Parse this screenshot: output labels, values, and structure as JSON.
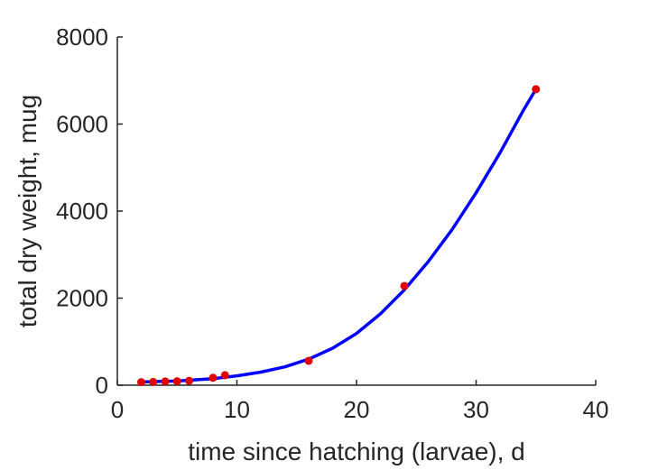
{
  "chart_data": {
    "type": "scatter",
    "title": "",
    "xlabel": "time since hatching (larvae), d",
    "ylabel": "total dry weight, mug",
    "xlim": [
      0,
      40
    ],
    "ylim": [
      0,
      8000
    ],
    "x_ticks": [
      0,
      10,
      20,
      30,
      40
    ],
    "y_ticks": [
      0,
      2000,
      4000,
      6000,
      8000
    ],
    "x_tick_labels": [
      "0",
      "10",
      "20",
      "30",
      "40"
    ],
    "y_tick_labels": [
      "0",
      "2000",
      "4000",
      "6000",
      "8000"
    ],
    "grid": false,
    "colors": {
      "points": "#e00000",
      "fit": "#0000ff",
      "axis": "#262626"
    },
    "series": [
      {
        "kind": "points",
        "x": [
          2,
          3,
          4,
          5,
          6,
          8,
          9,
          16,
          24,
          35
        ],
        "y": [
          70,
          75,
          85,
          90,
          100,
          170,
          230,
          560,
          2280,
          6800
        ]
      },
      {
        "kind": "fit-line",
        "x": [
          2,
          5,
          8,
          10,
          12,
          14,
          16,
          18,
          20,
          22,
          24,
          26,
          28,
          30,
          32,
          34,
          35
        ],
        "y": [
          75,
          95,
          150,
          215,
          300,
          420,
          600,
          850,
          1190,
          1640,
          2190,
          2840,
          3580,
          4420,
          5340,
          6340,
          6800
        ]
      }
    ]
  }
}
